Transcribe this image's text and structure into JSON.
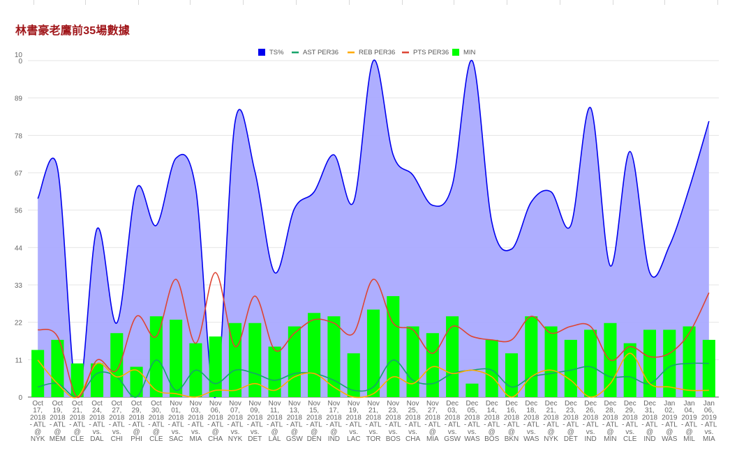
{
  "title": "林書豪老鷹前35場數據",
  "chart_data": {
    "type": "combo",
    "title": "林書豪老鷹前35場數據",
    "ylim": [
      0,
      100
    ],
    "yticks": [
      "0",
      "11",
      "22",
      "33",
      "44",
      "56",
      "67",
      "78",
      "89",
      "100"
    ],
    "grid": true,
    "legend_position": "top-center",
    "categories": [
      "Oct 17, 2018 - ATL @ NYK",
      "Oct 19, 2018 - ATL @ MEM",
      "Oct 21, 2018 - ATL @ CLE",
      "Oct 24, 2018 - ATL vs. DAL",
      "Oct 27, 2018 - ATL vs. CHI",
      "Oct 29, 2018 - ATL @ PHI",
      "Oct 30, 2018 - ATL @ CLE",
      "Nov 01, 2018 - ATL vs. SAC",
      "Nov 03, 2018 - ATL vs. MIA",
      "Nov 06, 2018 - ATL @ CHA",
      "Nov 07, 2018 - ATL vs. NYK",
      "Nov 09, 2018 - ATL vs. DET",
      "Nov 11, 2018 - ATL @ LAL",
      "Nov 13, 2018 - ATL @ GSW",
      "Nov 15, 2018 - ATL @ DEN",
      "Nov 17, 2018 - ATL @ IND",
      "Nov 19, 2018 - ATL vs. LAC",
      "Nov 21, 2018 - ATL vs. TOR",
      "Nov 23, 2018 - ATL vs. BOS",
      "Nov 25, 2018 - ATL vs. CHA",
      "Nov 27, 2018 - ATL @ MIA",
      "Dec 03, 2018 - ATL vs. GSW",
      "Dec 05, 2018 - ATL vs. WAS",
      "Dec 14, 2018 - ATL @ BOS",
      "Dec 16, 2018 - ATL @ BKN",
      "Dec 18, 2018 - ATL vs. WAS",
      "Dec 21, 2018 - ATL @ NYK",
      "Dec 23, 2018 - ATL @ DET",
      "Dec 26, 2018 - ATL vs. IND",
      "Dec 28, 2018 - ATL @ MIN",
      "Dec 29, 2018 - ATL vs. CLE",
      "Dec 31, 2018 - ATL @ IND",
      "Jan 02, 2019 - ATL @ WAS",
      "Jan 04, 2019 - ATL @ MIL",
      "Jan 06, 2019 - ATL vs. MIA"
    ],
    "category_lines": [
      [
        "Oct",
        "17,",
        "2018",
        "- ATL",
        "@",
        "NYK"
      ],
      [
        "Oct",
        "19,",
        "2018",
        "- ATL",
        "@",
        "MEM"
      ],
      [
        "Oct",
        "21,",
        "2018",
        "- ATL",
        "@",
        "CLE"
      ],
      [
        "Oct",
        "24,",
        "2018",
        "- ATL",
        "vs.",
        "DAL"
      ],
      [
        "Oct",
        "27,",
        "2018",
        "- ATL",
        "vs.",
        "CHI"
      ],
      [
        "Oct",
        "29,",
        "2018",
        "- ATL",
        "@",
        "PHI"
      ],
      [
        "Oct",
        "30,",
        "2018",
        "- ATL",
        "@",
        "CLE"
      ],
      [
        "Nov",
        "01,",
        "2018",
        "- ATL",
        "vs.",
        "SAC"
      ],
      [
        "Nov",
        "03,",
        "2018",
        "- ATL",
        "vs.",
        "MIA"
      ],
      [
        "Nov",
        "06,",
        "2018",
        "- ATL",
        "@",
        "CHA"
      ],
      [
        "Nov",
        "07,",
        "2018",
        "- ATL",
        "vs.",
        "NYK"
      ],
      [
        "Nov",
        "09,",
        "2018",
        "- ATL",
        "vs.",
        "DET"
      ],
      [
        "Nov",
        "11,",
        "2018",
        "- ATL",
        "@",
        "LAL"
      ],
      [
        "Nov",
        "13,",
        "2018",
        "- ATL",
        "@",
        "GSW"
      ],
      [
        "Nov",
        "15,",
        "2018",
        "- ATL",
        "@",
        "DEN"
      ],
      [
        "Nov",
        "17,",
        "2018",
        "- ATL",
        "@",
        "IND"
      ],
      [
        "Nov",
        "19,",
        "2018",
        "- ATL",
        "vs.",
        "LAC"
      ],
      [
        "Nov",
        "21,",
        "2018",
        "- ATL",
        "vs.",
        "TOR"
      ],
      [
        "Nov",
        "23,",
        "2018",
        "- ATL",
        "vs.",
        "BOS"
      ],
      [
        "Nov",
        "25,",
        "2018",
        "- ATL",
        "vs.",
        "CHA"
      ],
      [
        "Nov",
        "27,",
        "2018",
        "- ATL",
        "@",
        "MIA"
      ],
      [
        "Dec",
        "03,",
        "2018",
        "- ATL",
        "vs.",
        "GSW"
      ],
      [
        "Dec",
        "05,",
        "2018",
        "- ATL",
        "vs.",
        "WAS"
      ],
      [
        "Dec",
        "14,",
        "2018",
        "- ATL",
        "@",
        "BOS"
      ],
      [
        "Dec",
        "16,",
        "2018",
        "- ATL",
        "@",
        "BKN"
      ],
      [
        "Dec",
        "18,",
        "2018",
        "- ATL",
        "vs.",
        "WAS"
      ],
      [
        "Dec",
        "21,",
        "2018",
        "- ATL",
        "@",
        "NYK"
      ],
      [
        "Dec",
        "23,",
        "2018",
        "- ATL",
        "@",
        "DET"
      ],
      [
        "Dec",
        "26,",
        "2018",
        "- ATL",
        "vs.",
        "IND"
      ],
      [
        "Dec",
        "28,",
        "2018",
        "- ATL",
        "@",
        "MIN"
      ],
      [
        "Dec",
        "29,",
        "2018",
        "- ATL",
        "vs.",
        "CLE"
      ],
      [
        "Dec",
        "31,",
        "2018",
        "- ATL",
        "@",
        "IND"
      ],
      [
        "Jan",
        "02,",
        "2019",
        "- ATL",
        "@",
        "WAS"
      ],
      [
        "Jan",
        "04,",
        "2019",
        "- ATL",
        "@",
        "MIL"
      ],
      [
        "Jan",
        "06,",
        "2019",
        "- ATL",
        "vs.",
        "MIA"
      ]
    ],
    "series": [
      {
        "name": "TS%",
        "type": "area",
        "color": "#0000ee",
        "fill": "#aaaaff",
        "values": [
          59,
          68,
          0,
          50,
          22,
          62,
          51,
          71,
          62,
          0,
          82,
          67,
          37,
          56,
          61,
          72,
          58,
          100,
          72,
          66,
          57,
          63,
          100,
          52,
          44,
          58,
          61,
          51,
          86,
          39,
          73,
          37,
          45,
          62,
          82
        ]
      },
      {
        "name": "AST PER36",
        "type": "line",
        "color": "#16a36a",
        "values": [
          3,
          4,
          0,
          7,
          6,
          0,
          11,
          2,
          8,
          4,
          8,
          7,
          5,
          7,
          7,
          5,
          2,
          3,
          11,
          5,
          4,
          7,
          8,
          8,
          3,
          6,
          7,
          8,
          9,
          6,
          6,
          4,
          9,
          10,
          10
        ]
      },
      {
        "name": "REB PER36",
        "type": "line",
        "color": "#ffaa00",
        "values": [
          11,
          4,
          0,
          10,
          6,
          8,
          2,
          1,
          0,
          2,
          2,
          4,
          2,
          6,
          7,
          3,
          0,
          1,
          6,
          4,
          9,
          7,
          8,
          6,
          0,
          6,
          8,
          5,
          0,
          4,
          13,
          4,
          3,
          2,
          2
        ]
      },
      {
        "name": "PTS PER36",
        "type": "line",
        "color": "#dd4433",
        "values": [
          20,
          18,
          0,
          11,
          8,
          24,
          18,
          35,
          16,
          37,
          15,
          30,
          14,
          19,
          23,
          22,
          19,
          35,
          22,
          20,
          13,
          21,
          18,
          17,
          17,
          24,
          19,
          21,
          21,
          11,
          15,
          12,
          13,
          19,
          31
        ]
      },
      {
        "name": "MIN",
        "type": "bar",
        "color": "#00ff00",
        "values": [
          14,
          17,
          10,
          10,
          19,
          9,
          24,
          23,
          16,
          18,
          22,
          22,
          15,
          21,
          25,
          24,
          13,
          26,
          30,
          21,
          19,
          24,
          4,
          17,
          13,
          24,
          21,
          17,
          20,
          22,
          16,
          20,
          20,
          21,
          17
        ]
      }
    ]
  }
}
